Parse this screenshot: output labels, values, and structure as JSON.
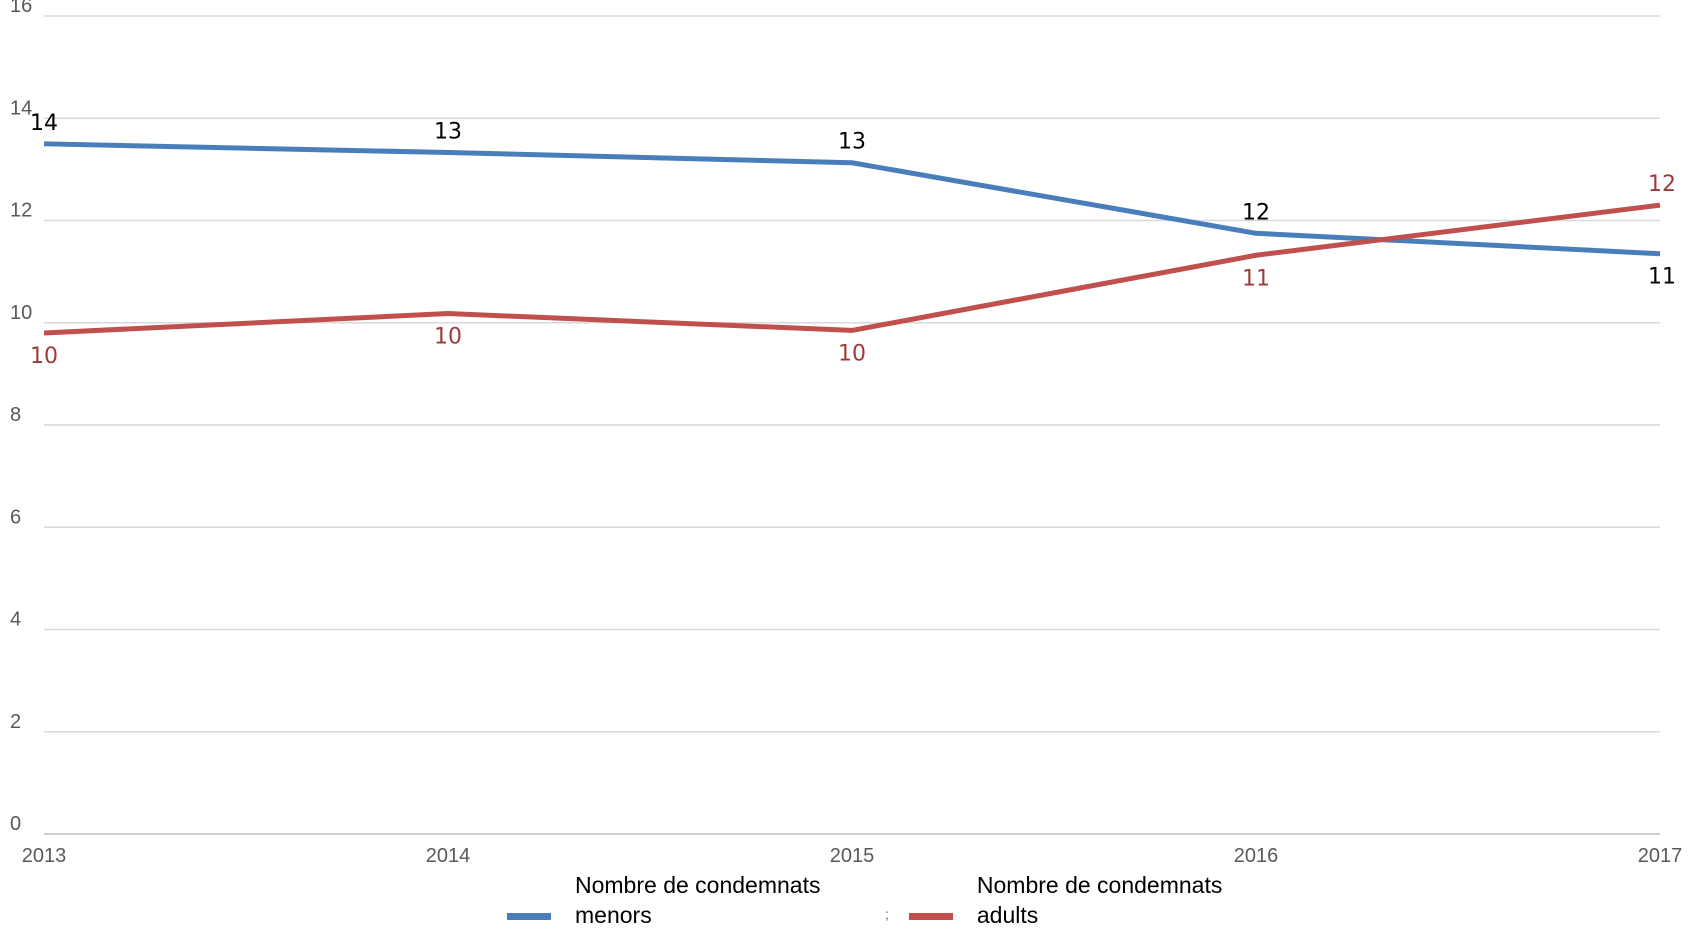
{
  "chart_data": {
    "type": "line",
    "x": [
      "2013",
      "2014",
      "2015",
      "2016",
      "2017"
    ],
    "series": [
      {
        "name": "Nombre de condemnats menors",
        "values": [
          13.5,
          13.33,
          13.13,
          11.75,
          11.35
        ],
        "labels": [
          "14",
          "13",
          "13",
          "12",
          "11"
        ],
        "color": "#4a7ebb",
        "label_color": "#000000"
      },
      {
        "name": "Nombre de condemnats adults",
        "values": [
          9.8,
          10.18,
          9.85,
          11.32,
          12.3
        ],
        "labels": [
          "10",
          "10",
          "10",
          "11",
          "12"
        ],
        "color": "#c0504d",
        "label_color": "#9c3b38"
      }
    ],
    "ylim": [
      0,
      16
    ],
    "yticks": [
      "0",
      "2",
      "4",
      "6",
      "8",
      "10",
      "12",
      "14",
      "16"
    ],
    "grid": true,
    "legend_position": "bottom",
    "title": "",
    "xlabel": "",
    "ylabel": ""
  },
  "legend": {
    "separator": ";"
  }
}
